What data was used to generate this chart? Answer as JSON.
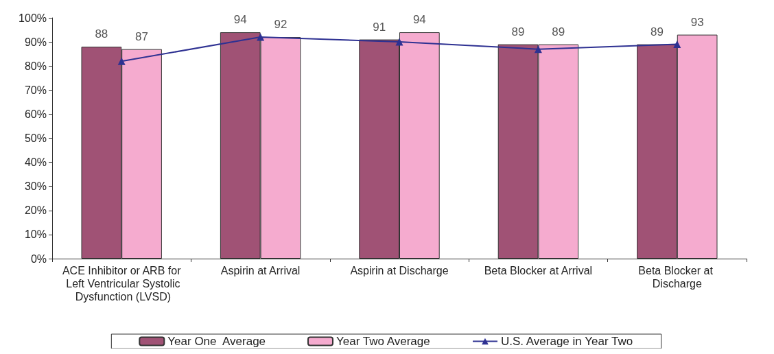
{
  "chart_data": {
    "type": "bar",
    "categories": [
      "ACE Inhibitor or ARB for Left Ventricular Systolic Dysfunction (LVSD)",
      "Aspirin at Arrival",
      "Aspirin at Discharge",
      "Beta Blocker at Arrival",
      "Beta Blocker at Discharge"
    ],
    "series": [
      {
        "name": "Year One  Average",
        "color": "#a05275",
        "values": [
          88,
          94,
          91,
          89,
          89
        ],
        "data_labels": true
      },
      {
        "name": "Year Two Average",
        "color": "#f5abcf",
        "values": [
          87,
          92,
          94,
          89,
          93
        ],
        "data_labels": true
      },
      {
        "name": "U.S. Average in Year Two",
        "type": "line",
        "color": "#2e3192",
        "values": [
          82,
          92,
          90,
          87,
          89
        ],
        "marker": "triangle"
      }
    ],
    "ylim": [
      0,
      100
    ],
    "yticks": [
      {
        "value": 0,
        "label": "0%"
      },
      {
        "value": 10,
        "label": "10%"
      },
      {
        "value": 20,
        "label": "20%"
      },
      {
        "value": 30,
        "label": "30%"
      },
      {
        "value": 40,
        "label": "40%"
      },
      {
        "value": 50,
        "label": "50%"
      },
      {
        "value": 60,
        "label": "60%"
      },
      {
        "value": 70,
        "label": "70%"
      },
      {
        "value": 80,
        "label": "80%"
      },
      {
        "value": 90,
        "label": "90%"
      },
      {
        "value": 100,
        "label": "100%"
      }
    ],
    "grid": false,
    "legend": "bottom"
  }
}
